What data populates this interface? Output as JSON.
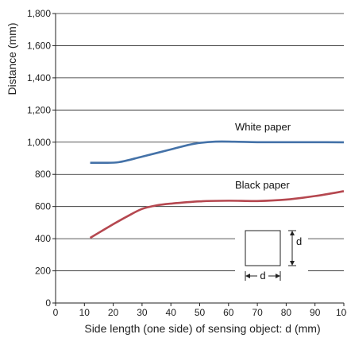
{
  "chart_data": {
    "type": "line",
    "xlabel": "Side length (one side) of sensing object: d (mm)",
    "ylabel": "Distance (mm)",
    "xlim": [
      0,
      100
    ],
    "ylim": [
      0,
      1800
    ],
    "x_ticks": [
      "0",
      "10",
      "20",
      "30",
      "40",
      "50",
      "60",
      "70",
      "80",
      "90",
      "100"
    ],
    "y_ticks": [
      "0",
      "200",
      "400",
      "600",
      "800",
      "1,000",
      "1,200",
      "1,400",
      "1,600",
      "1,800"
    ],
    "grid": "horizontal",
    "series": [
      {
        "name": "White paper",
        "color": "#4472a8",
        "points": [
          [
            12,
            872
          ],
          [
            16,
            872
          ],
          [
            22,
            876
          ],
          [
            30,
            910
          ],
          [
            40,
            955
          ],
          [
            48,
            990
          ],
          [
            55,
            1003
          ],
          [
            62,
            1003
          ],
          [
            70,
            1000
          ],
          [
            80,
            1000
          ],
          [
            90,
            1000
          ],
          [
            100,
            999
          ]
        ]
      },
      {
        "name": "Black paper",
        "color": "#b5474f",
        "points": [
          [
            12,
            405
          ],
          [
            20,
            490
          ],
          [
            25,
            540
          ],
          [
            30,
            585
          ],
          [
            35,
            607
          ],
          [
            40,
            618
          ],
          [
            50,
            632
          ],
          [
            60,
            636
          ],
          [
            70,
            634
          ],
          [
            80,
            643
          ],
          [
            90,
            665
          ],
          [
            100,
            695
          ]
        ]
      }
    ],
    "inset_diagram": {
      "label_side": "d",
      "label_bottom": "d"
    }
  }
}
